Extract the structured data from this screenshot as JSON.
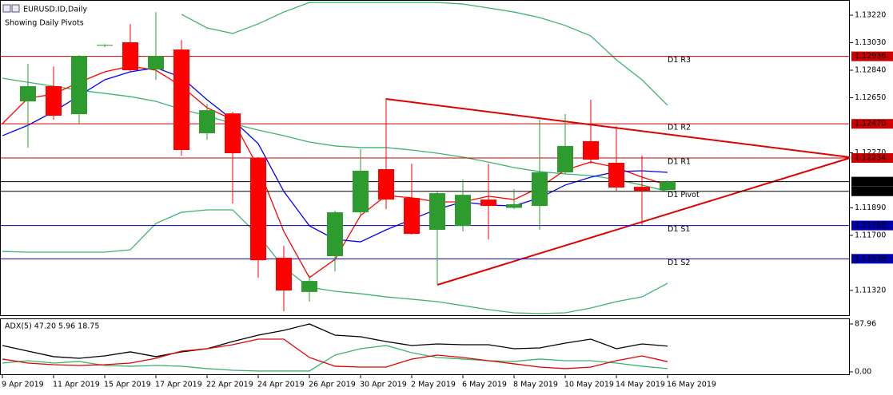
{
  "chart_data": [
    {
      "type": "candlestick",
      "title": "EURUSD.ID,Daily",
      "subtitle": "Showing Daily Pivots",
      "categories": [
        "9 Apr 2019",
        null,
        "11 Apr 2019",
        null,
        "15 Apr 2019",
        null,
        "17 Apr 2019",
        null,
        "22 Apr 2019",
        null,
        "24 Apr 2019",
        null,
        "26 Apr 2019",
        null,
        "30 Apr 2019",
        null,
        "2 May 2019",
        null,
        "6 May 2019",
        null,
        "8 May 2019",
        null,
        "10 May 2019",
        null,
        "14 May 2019",
        null,
        "16 May 2019"
      ],
      "open": [
        null,
        1.12625,
        1.1273,
        1.12537,
        1.1301,
        1.13033,
        1.12845,
        1.12983,
        1.12405,
        1.12542,
        1.12234,
        1.11545,
        1.11309,
        1.11556,
        1.11859,
        1.12157,
        1.11958,
        1.11738,
        1.11765,
        1.11947,
        1.1189,
        1.11903,
        1.12135,
        1.1235,
        1.12201,
        1.12035,
        1.12013
      ],
      "high": [
        null,
        1.12884,
        1.12867,
        1.12945,
        1.1302,
        1.13159,
        1.13242,
        1.13049,
        1.12608,
        1.12553,
        1.1224,
        1.11628,
        1.11424,
        1.1187,
        1.12295,
        1.12647,
        1.12195,
        1.12,
        1.12085,
        1.12195,
        1.12019,
        1.12498,
        1.12537,
        1.12636,
        1.12454,
        1.1225,
        1.1208
      ],
      "low": [
        null,
        1.12305,
        1.12498,
        1.12471,
        1.13,
        1.12829,
        1.12774,
        1.1225,
        1.1236,
        1.1192,
        1.11407,
        1.11176,
        1.11242,
        1.11451,
        1.11837,
        1.11881,
        1.11705,
        1.11358,
        1.11727,
        1.11672,
        1.11881,
        1.11738,
        1.12124,
        1.12195,
        1.12002,
        1.11771,
        1.12002
      ],
      "close": [
        null,
        1.1273,
        1.12526,
        1.12939,
        1.13015,
        1.1284,
        1.12939,
        1.12289,
        1.12564,
        1.12267,
        1.11528,
        1.11319,
        1.11385,
        1.11859,
        1.12146,
        1.11947,
        1.1171,
        1.11991,
        1.1198,
        1.11903,
        1.11915,
        1.12135,
        1.12317,
        1.12223,
        1.1203,
        1.12008,
        1.12071
      ],
      "up_color": "#2e9b2e",
      "down_color": "#ff0000",
      "series": [
        {
          "color": "#3cb371",
          "values": [
            null,
            null,
            null,
            null,
            null,
            null,
            null,
            1.13226,
            1.13132,
            1.13094,
            1.1316,
            1.13242,
            1.13308,
            1.13308,
            1.13308,
            1.13308,
            1.13308,
            1.13308,
            1.13297,
            1.1327,
            1.13242,
            1.13204,
            1.13149,
            1.13077,
            1.12912,
            1.12774,
            1.12598
          ]
        },
        {
          "color": "#3cb371",
          "values": [
            1.12785,
            1.12757,
            1.1273,
            1.12702,
            1.1268,
            1.12658,
            1.12625,
            1.1257,
            1.12526,
            1.12471,
            1.12427,
            1.12388,
            1.12344,
            1.12317,
            1.12306,
            1.12306,
            1.12289,
            1.12267,
            1.1224,
            1.12206,
            1.12168,
            1.1214,
            1.12124,
            1.12113,
            1.12085,
            1.12047,
            1.12003
          ]
        },
        {
          "color": "#3cb371",
          "values": [
            1.11589,
            1.11584,
            1.11584,
            1.11584,
            1.11584,
            1.116,
            1.11782,
            1.11859,
            1.11876,
            1.11876,
            1.117,
            1.11479,
            1.11341,
            1.11314,
            1.11297,
            1.11275,
            1.11259,
            1.11242,
            1.11215,
            1.11187,
            1.11165,
            1.1116,
            1.11165,
            1.11198,
            1.11242,
            1.11275,
            1.11369
          ]
        },
        {
          "color": "#ff0000",
          "values": [
            1.12471,
            1.12647,
            1.12675,
            1.12757,
            1.12829,
            1.12868,
            1.1284,
            1.1273,
            1.12581,
            1.12498,
            1.12168,
            1.11727,
            1.11408,
            1.11534,
            1.11837,
            1.11975,
            1.11959,
            1.11931,
            1.11931,
            1.1197,
            1.11947,
            1.1203,
            1.12151,
            1.12206,
            1.12168,
            1.12102,
            1.12047
          ]
        },
        {
          "color": "#0000ff",
          "values": [
            1.12388,
            1.1246,
            1.12554,
            1.12664,
            1.12774,
            1.12829,
            1.12857,
            1.12791,
            1.12636,
            1.12498,
            1.12333,
            1.12003,
            1.11766,
            1.11672,
            1.11655,
            1.11738,
            1.1181,
            1.11881,
            1.11931,
            1.11909,
            1.11903,
            1.11959,
            1.12047,
            1.12102,
            1.1214,
            1.12146,
            1.12135
          ]
        }
      ],
      "levels": [
        {
          "name": "D1 R3",
          "value": 1.12936,
          "color": "#cc0000"
        },
        {
          "name": "D1 R2",
          "value": 1.1247,
          "label": "1.12470",
          "color": "#cc0000"
        },
        {
          "name": "D1 R1",
          "value": 1.12234,
          "color": "#cc0000"
        },
        {
          "value": 1.12071,
          "color": "#000000"
        },
        {
          "name": "D1 Pivot",
          "value": 1.12004,
          "color": "#000000"
        },
        {
          "name": "D1 S1",
          "value": 1.11768,
          "color": "#0000aa"
        },
        {
          "name": "D1 S2",
          "value": 1.11538,
          "color": "#0000aa"
        }
      ],
      "ylim": [
        1.11143,
        1.13325
      ],
      "yticks": [
        {
          "value": 1.1322,
          "label": "1.13220"
        },
        {
          "value": 1.1303,
          "label": "1.13030"
        },
        {
          "value": 1.1284,
          "label": "1.12840"
        },
        {
          "value": 1.1265,
          "label": "1.12650"
        },
        {
          "value": 1.1227,
          "label": "1.12270"
        },
        {
          "value": 1.1189,
          "label": "1.11890"
        },
        {
          "value": 1.117,
          "label": "1.11700"
        },
        {
          "value": 1.1132,
          "label": "1.11320"
        }
      ]
    },
    {
      "type": "line",
      "title": "ADX(5) 47.20 5.96 18.75",
      "series": [
        {
          "color": "#000000",
          "values": [
            48.4,
            38.1,
            27.9,
            24.9,
            29.3,
            36.7,
            27.9,
            36.7,
            42.5,
            55.7,
            67.4,
            76.2,
            87.96,
            67.4,
            64.5,
            55.7,
            48.4,
            51.3,
            49.8,
            49.8,
            42.5,
            44.0,
            52.8,
            60.1,
            42.5,
            51.3,
            47.2
          ]
        },
        {
          "color": "#3cb371",
          "values": [
            16.1,
            20.5,
            16.1,
            19.1,
            11.7,
            10.3,
            11.7,
            10.3,
            5.9,
            2.9,
            1.5,
            1.5,
            1.5,
            30.8,
            42.5,
            48.4,
            35.2,
            26.4,
            23.5,
            20.5,
            19.1,
            23.5,
            20.5,
            20.5,
            16.1,
            10.3,
            5.96
          ]
        },
        {
          "color": "#e00000",
          "values": [
            23.5,
            16.1,
            13.2,
            11.7,
            13.2,
            16.1,
            24.9,
            38.1,
            42.5,
            49.8,
            60.1,
            60.1,
            26.4,
            10.3,
            8.8,
            8.8,
            23.5,
            30.8,
            26.4,
            20.5,
            14.7,
            8.8,
            5.9,
            8.8,
            20.5,
            29.3,
            18.75
          ]
        }
      ],
      "ylim": [
        -5.9,
        98.2
      ],
      "yticks": [
        87.96,
        {
          "value": 0,
          "label": "0.00"
        }
      ]
    }
  ]
}
